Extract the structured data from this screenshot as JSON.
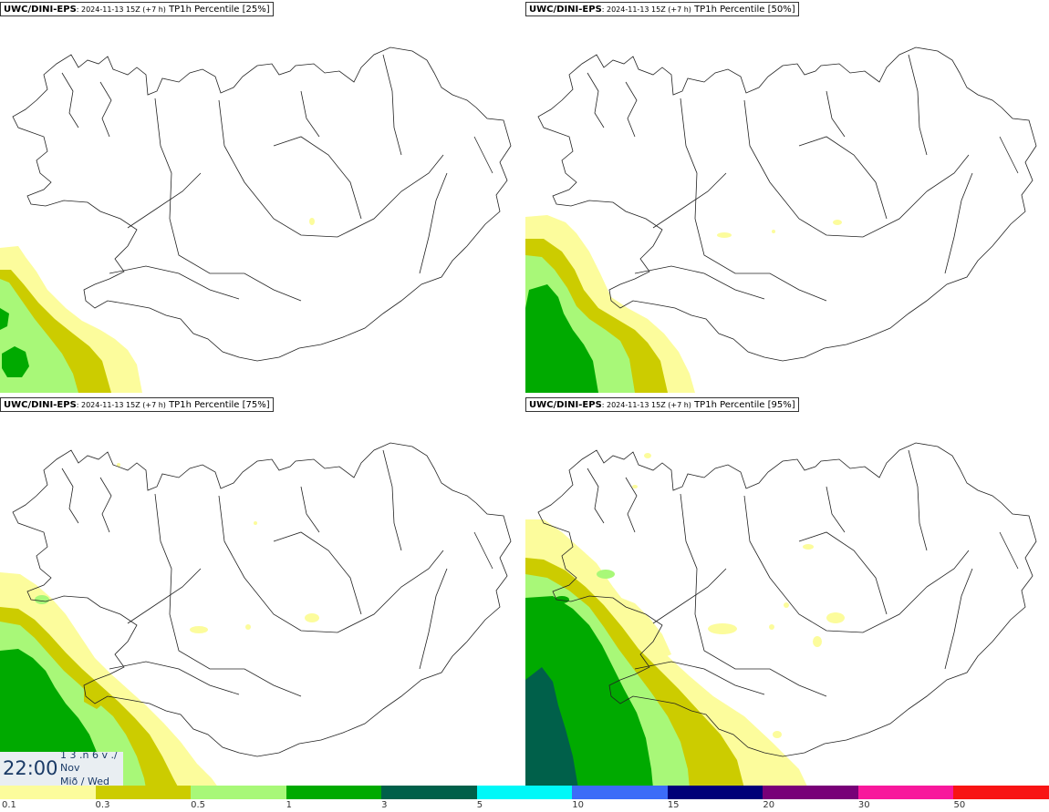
{
  "panels": [
    {
      "model": "UWC/DINI-EPS",
      "info": ": 2024-11-13 15Z (+7 h)",
      "field": " TP1h Percentile [25%]"
    },
    {
      "model": "UWC/DINI-EPS",
      "info": ": 2024-11-13 15Z (+7 h)",
      "field": " TP1h Percentile [50%]"
    },
    {
      "model": "UWC/DINI-EPS",
      "info": ": 2024-11-13 15Z (+7 h)",
      "field": " TP1h Percentile [75%]"
    },
    {
      "model": "UWC/DINI-EPS",
      "info": ": 2024-11-13 15Z (+7 h)",
      "field": " TP1h Percentile [95%]"
    }
  ],
  "time_box": {
    "clock": "22:00",
    "line1": "1 3 .n 6 v ./",
    "line2": "Nov",
    "line3": "Mið / Wed"
  },
  "legend": {
    "colors": [
      "#fcfc9c",
      "#cccc00",
      "#a8f878",
      "#00aa00",
      "#00604a",
      "#00f8f8",
      "#3c6cf8",
      "#000078",
      "#780078",
      "#f8189c",
      "#f81414"
    ],
    "ticks": [
      "0.1",
      "0.3",
      "0.5",
      "1",
      "3",
      "5",
      "10",
      "15",
      "20",
      "30",
      "50"
    ]
  },
  "map_colors": {
    "light_yellow": "#fcfc9c",
    "olive": "#cccc00",
    "light_green": "#a8f878",
    "green": "#00aa00",
    "dark_green": "#00604a",
    "coast": "#222222"
  }
}
